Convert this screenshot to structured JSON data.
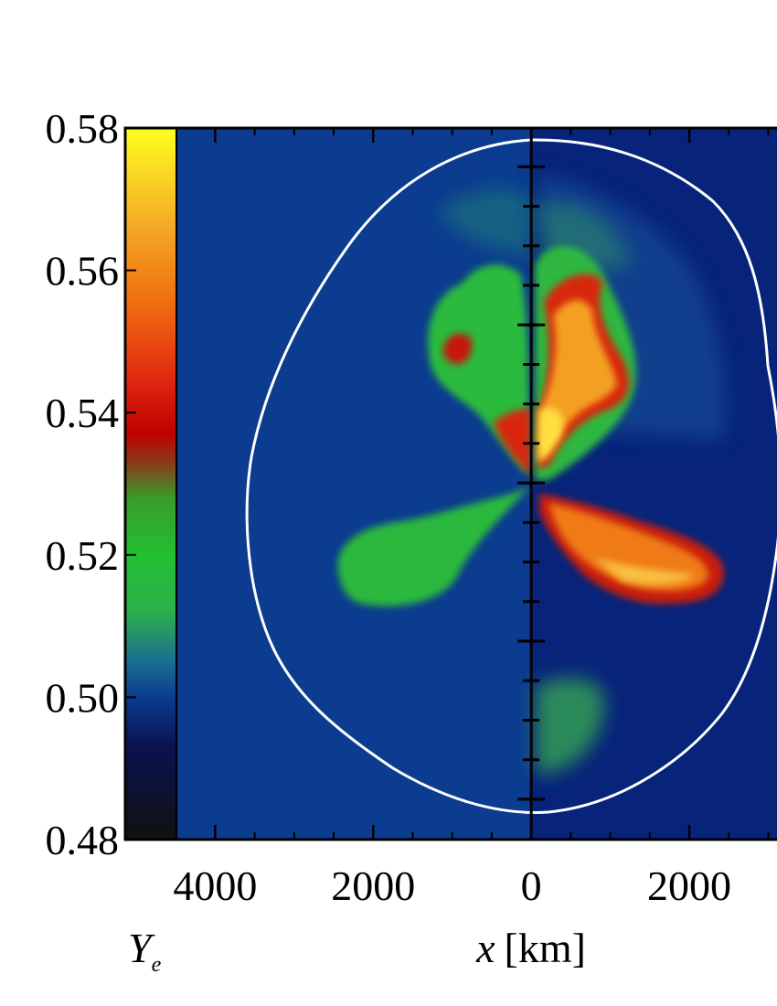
{
  "chart_data": {
    "type": "heatmap",
    "colorbar": {
      "clim": [
        0.48,
        0.58
      ],
      "ticks": [
        0.58,
        0.56,
        0.54,
        0.52,
        {
          "value": 0.5,
          "label": "0.50"
        },
        0.48
      ],
      "label": {
        "symbol": "Y",
        "subscript": "e"
      },
      "colormap": [
        {
          "value": 0.48,
          "color": "#111111"
        },
        {
          "value": 0.493,
          "color": "#0a1250"
        },
        {
          "value": 0.5,
          "color": "#0b3c8f"
        },
        {
          "value": 0.505,
          "color": "#1a6e90"
        },
        {
          "value": 0.512,
          "color": "#2cb04c"
        },
        {
          "value": 0.52,
          "color": "#22c032"
        },
        {
          "value": 0.528,
          "color": "#3a9a2a"
        },
        {
          "value": 0.533,
          "color": "#8a3a1a"
        },
        {
          "value": 0.537,
          "color": "#c00000"
        },
        {
          "value": 0.545,
          "color": "#e02a10"
        },
        {
          "value": 0.555,
          "color": "#f06a10"
        },
        {
          "value": 0.566,
          "color": "#f5a824"
        },
        {
          "value": 0.58,
          "color": "#ffff20"
        }
      ]
    },
    "xlabel": {
      "symbol": "x",
      "unit": "[km]"
    },
    "xlim": [
      -4490,
      3110
    ],
    "xticks": [
      {
        "value": -4000,
        "label": "4000"
      },
      {
        "value": -2000,
        "label": "2000"
      },
      0,
      2000
    ],
    "xminorticks": [
      -4000,
      -3500,
      -3000,
      -2500,
      -2000,
      -1500,
      -1000,
      -500,
      0,
      500,
      1000,
      1500,
      2000,
      2500,
      3000
    ],
    "ylim": [
      -4510,
      4490
    ],
    "yticks": [
      -4000,
      -2000,
      0,
      2000,
      4000
    ],
    "yminorticks": [
      -4000,
      -3500,
      -3000,
      -2500,
      -2000,
      -1500,
      -1000,
      -500,
      0,
      500,
      1000,
      1500,
      2000,
      2500,
      3000,
      3500,
      4000
    ]
  }
}
